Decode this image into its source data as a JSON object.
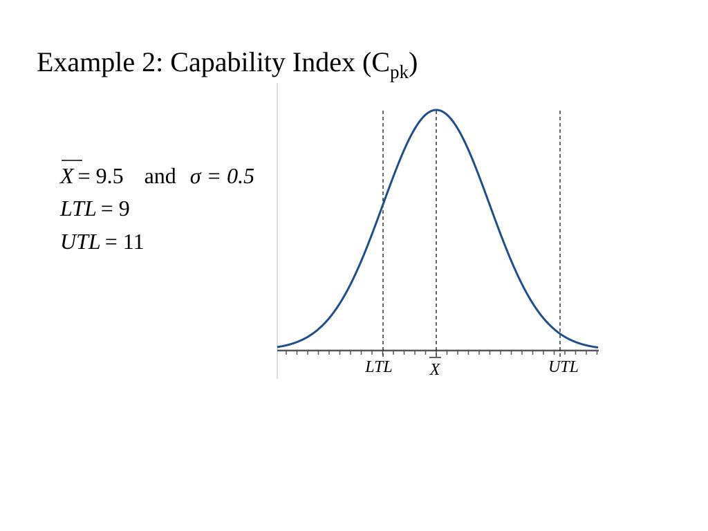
{
  "title": {
    "main": "Example 2: Capability Index (C",
    "subscript": "pk",
    "close": ")"
  },
  "given": {
    "xbar": "X",
    "xbar_eq": "= 9.5",
    "and": "and",
    "sigma": "σ = 0.5",
    "ltl": "LTL",
    "ltl_eq": "= 9",
    "utl": "UTL",
    "utl_eq": "= 11"
  },
  "figure": {
    "labels": [
      "LTL",
      "X",
      "UTL"
    ]
  }
}
